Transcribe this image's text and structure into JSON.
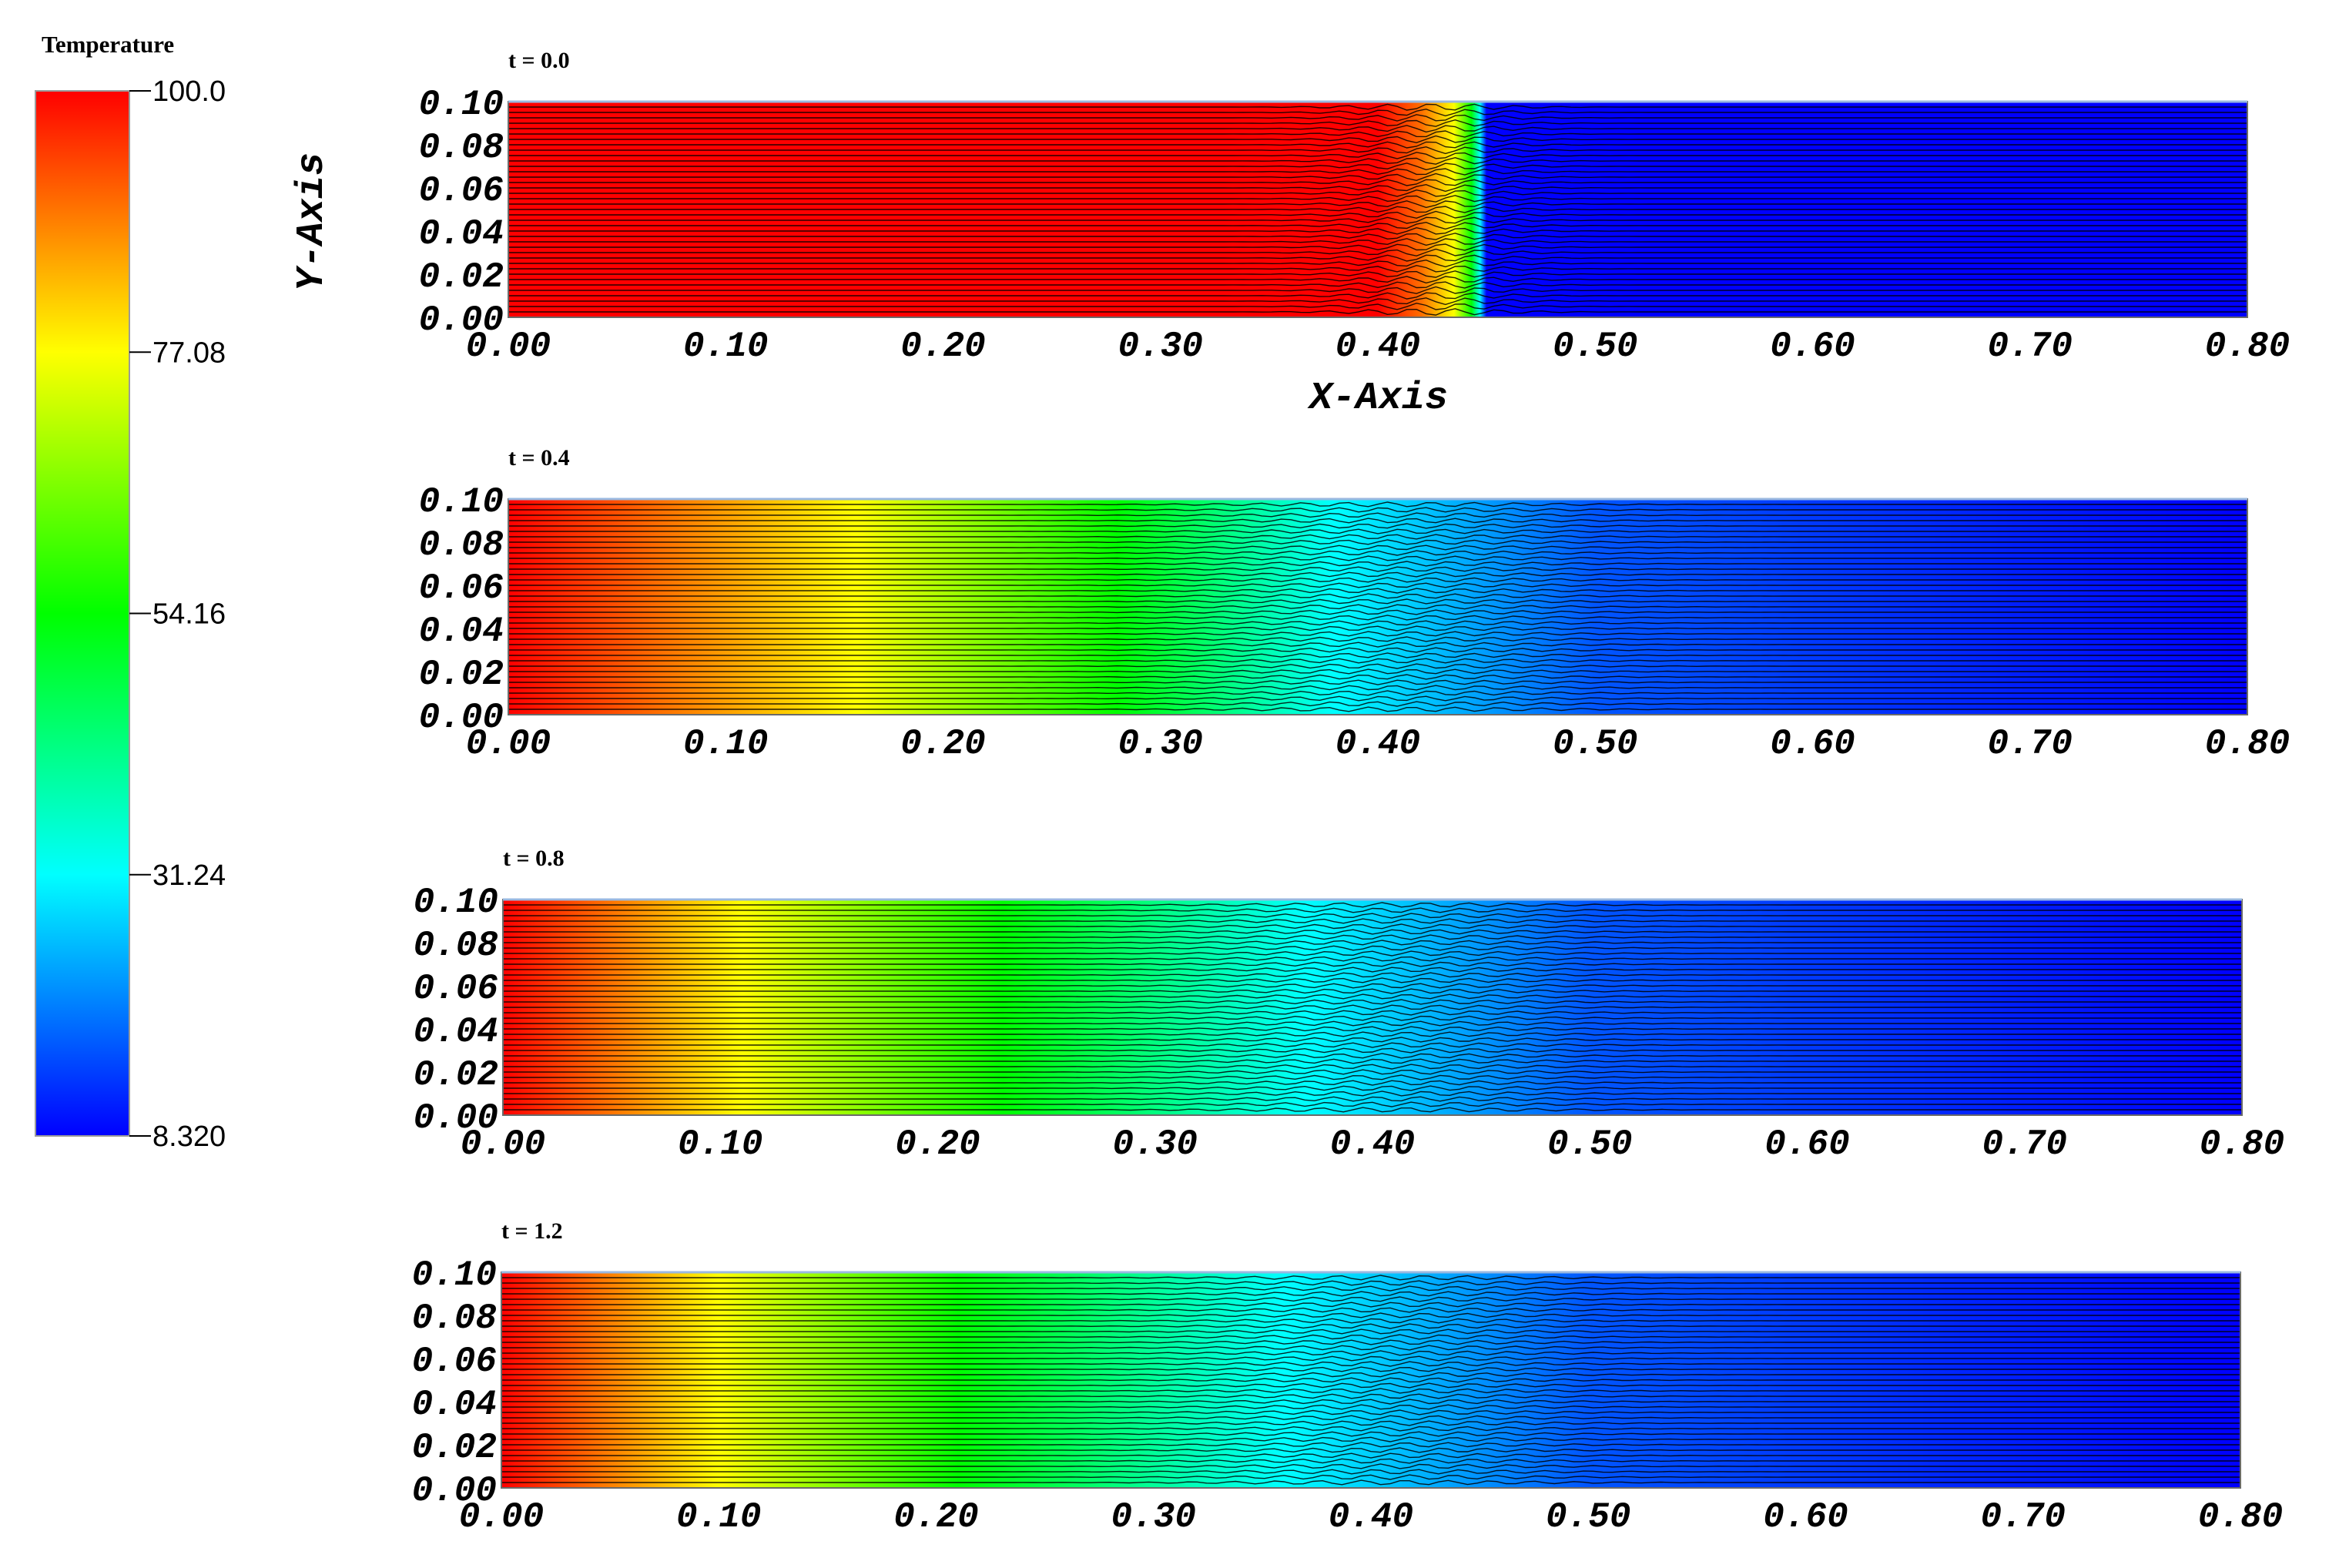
{
  "colorbar": {
    "title": "Temperature",
    "ticks": [
      {
        "value": 100.0,
        "label": "100.0"
      },
      {
        "value": 77.08,
        "label": "77.08"
      },
      {
        "value": 54.16,
        "label": "54.16"
      },
      {
        "value": 31.24,
        "label": "31.24"
      },
      {
        "value": 8.32,
        "label": "8.320"
      }
    ],
    "colors": [
      "#ff0000",
      "#ffff00",
      "#00ff00",
      "#00ffff",
      "#0000ff"
    ]
  },
  "axes": {
    "xlabel": "X-Axis",
    "ylabel": "Y-Axis",
    "xticks": [
      "0.00",
      "0.10",
      "0.20",
      "0.30",
      "0.40",
      "0.50",
      "0.60",
      "0.70",
      "0.80"
    ],
    "yticks": [
      "0.00",
      "0.02",
      "0.04",
      "0.06",
      "0.08",
      "0.10"
    ]
  },
  "chart_data": [
    {
      "type": "heatmap",
      "title": "t = 0.0",
      "xlim": [
        0.0,
        0.8
      ],
      "ylim": [
        0.0,
        0.1
      ],
      "profile": [
        [
          0.0,
          100.0
        ],
        [
          0.4,
          100.0
        ],
        [
          0.42,
          90.0
        ],
        [
          0.435,
          77.0
        ],
        [
          0.443,
          54.0
        ],
        [
          0.447,
          31.0
        ],
        [
          0.45,
          8.32
        ],
        [
          0.8,
          8.32
        ]
      ]
    },
    {
      "type": "heatmap",
      "title": "t = 0.4",
      "xlim": [
        0.0,
        0.8
      ],
      "ylim": [
        0.0,
        0.1
      ],
      "profile": [
        [
          0.0,
          100.0
        ],
        [
          0.16,
          77.08
        ],
        [
          0.28,
          54.16
        ],
        [
          0.38,
          31.24
        ],
        [
          0.5,
          16.0
        ],
        [
          0.8,
          8.32
        ]
      ]
    },
    {
      "type": "heatmap",
      "title": "t = 0.8",
      "xlim": [
        0.0,
        0.8
      ],
      "ylim": [
        0.0,
        0.1
      ],
      "profile": [
        [
          0.0,
          100.0
        ],
        [
          0.11,
          77.08
        ],
        [
          0.23,
          54.16
        ],
        [
          0.37,
          31.24
        ],
        [
          0.5,
          16.0
        ],
        [
          0.8,
          8.32
        ]
      ]
    },
    {
      "type": "heatmap",
      "title": "t = 1.2",
      "xlim": [
        0.0,
        0.8
      ],
      "ylim": [
        0.0,
        0.1
      ],
      "profile": [
        [
          0.0,
          100.0
        ],
        [
          0.1,
          77.08
        ],
        [
          0.21,
          54.16
        ],
        [
          0.36,
          31.24
        ],
        [
          0.5,
          16.0
        ],
        [
          0.8,
          8.32
        ]
      ]
    }
  ]
}
